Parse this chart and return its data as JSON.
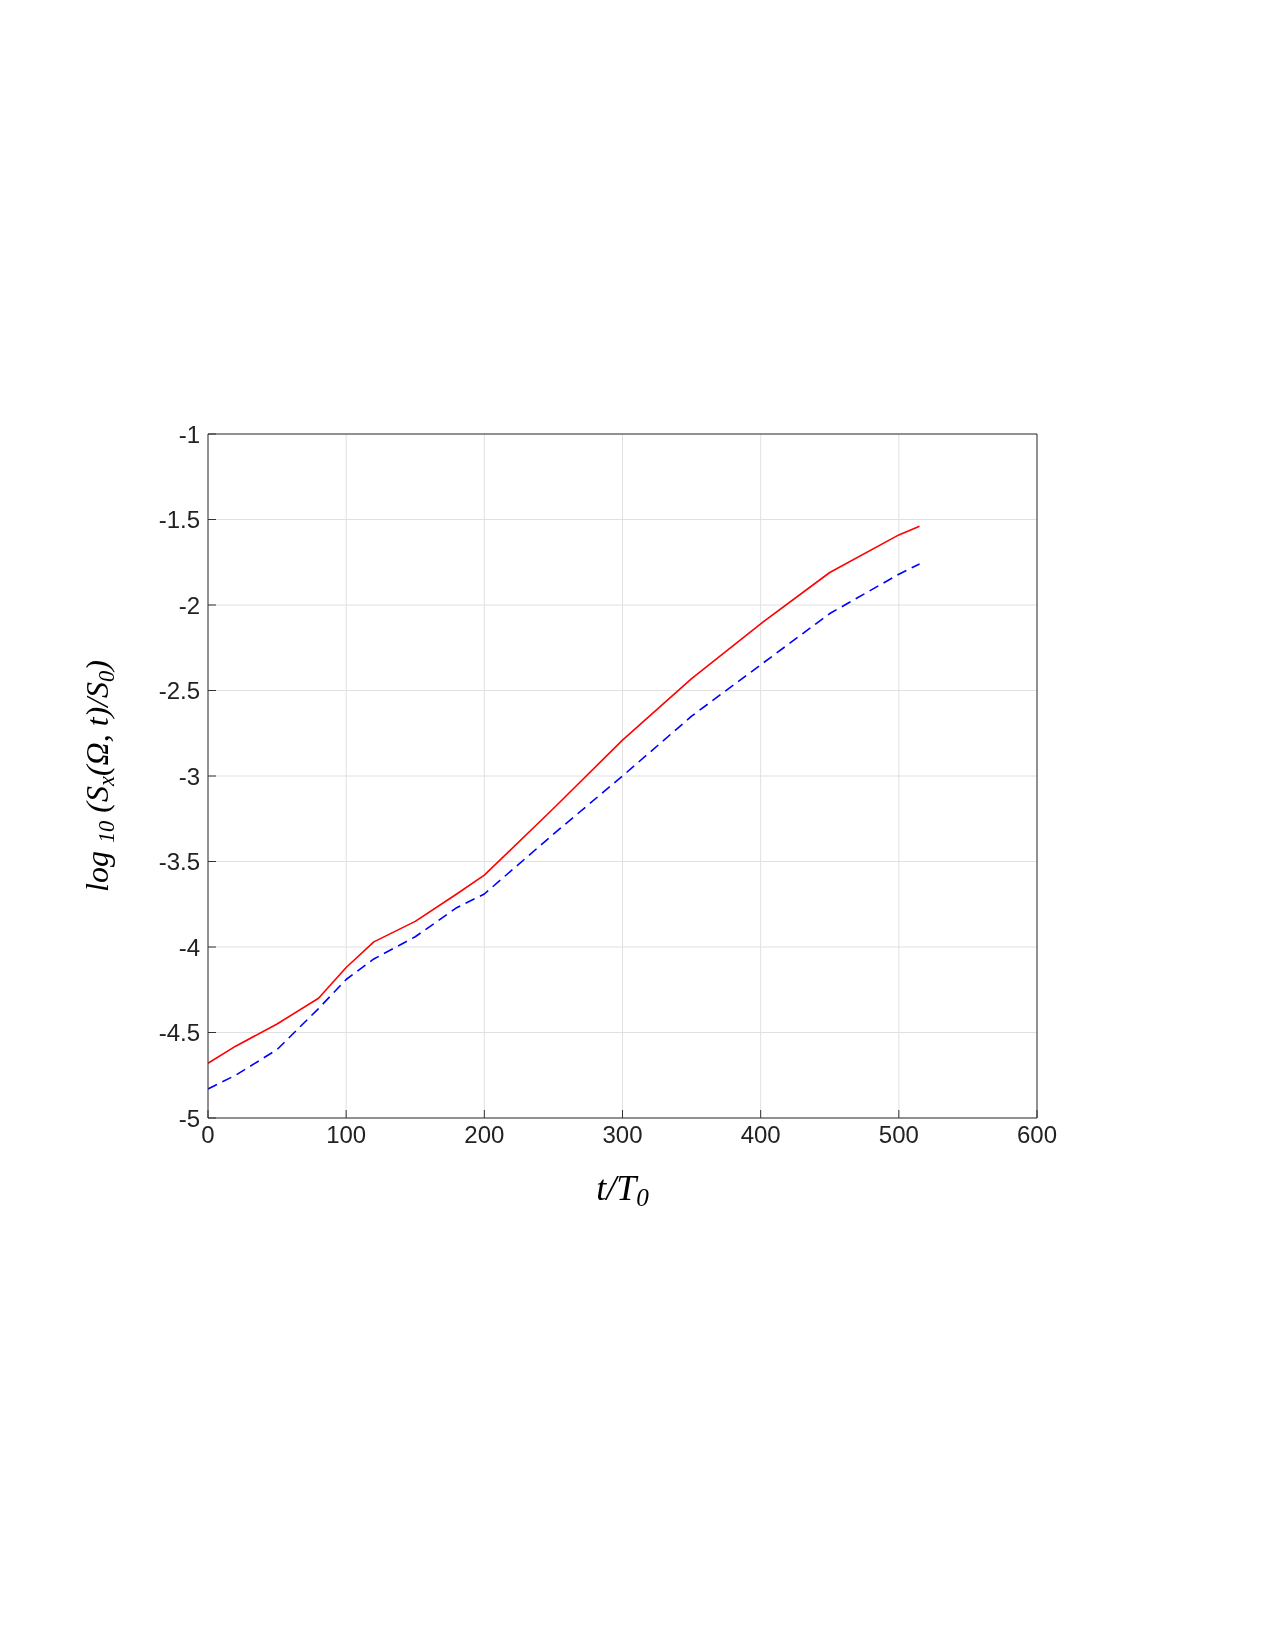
{
  "chart_data": {
    "type": "line",
    "xlabel": "t/T$_{0}$",
    "ylabel": "log $_{10}$ (S$_{x}$(Ω, t)/S$_{0}$)",
    "x": [
      0,
      20,
      50,
      80,
      100,
      120,
      150,
      180,
      200,
      250,
      300,
      350,
      400,
      450,
      500,
      515
    ],
    "series": [
      {
        "color": "#ff0000",
        "line_style": "solid",
        "values": [
          -4.68,
          -4.58,
          -4.45,
          -4.3,
          -4.12,
          -3.97,
          -3.85,
          -3.69,
          -3.58,
          -3.19,
          -2.79,
          -2.43,
          -2.11,
          -1.81,
          -1.59,
          -1.54
        ]
      },
      {
        "color": "#0000ff",
        "line_style": "dashed",
        "values": [
          -4.83,
          -4.75,
          -4.6,
          -4.36,
          -4.19,
          -4.07,
          -3.94,
          -3.77,
          -3.69,
          -3.34,
          -3.0,
          -2.65,
          -2.35,
          -2.05,
          -1.82,
          -1.76
        ]
      }
    ],
    "xlim": [
      0,
      600
    ],
    "xticks": [
      0,
      100,
      200,
      300,
      400,
      500,
      600
    ],
    "ylim": [
      -5,
      -1
    ],
    "yticks": [
      -5,
      -4.5,
      -4,
      -3.5,
      -3,
      -2.5,
      -2,
      -1.5,
      -1
    ],
    "grid": true,
    "legend": false,
    "marker": "none"
  }
}
